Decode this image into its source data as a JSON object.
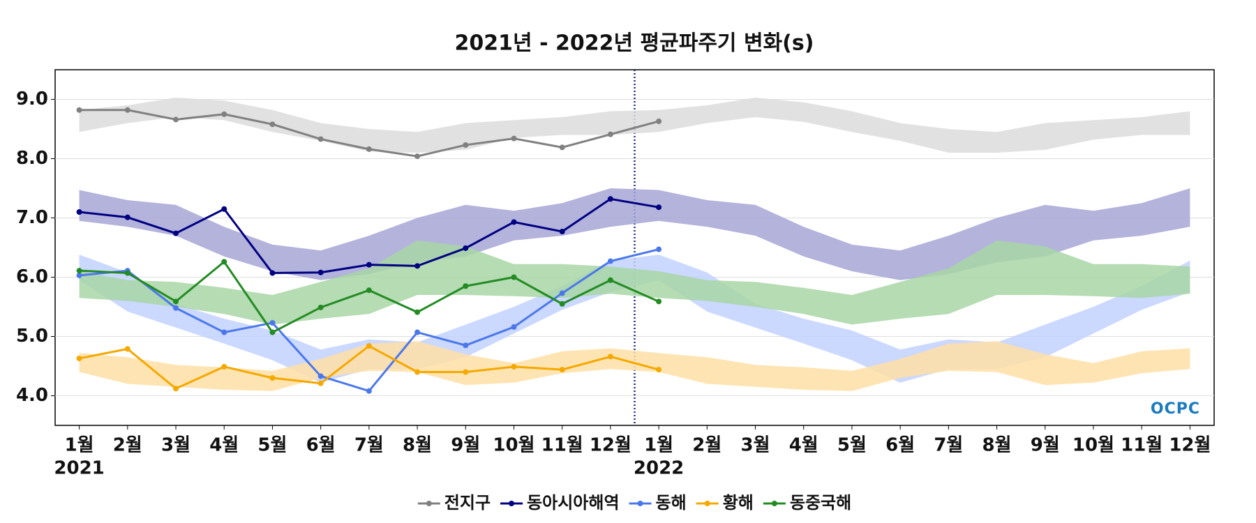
{
  "chart_data": {
    "type": "line",
    "title": "2021년 - 2022년 평균파주기 변화(s)",
    "categories": [
      "1월",
      "2월",
      "3월",
      "4월",
      "5월",
      "6월",
      "7월",
      "8월",
      "9월",
      "10월",
      "11월",
      "12월",
      "1월",
      "2월",
      "3월",
      "4월",
      "5월",
      "6월",
      "7월",
      "8월",
      "9월",
      "10월",
      "11월",
      "12월"
    ],
    "category_years": [
      "2021",
      null,
      null,
      null,
      null,
      null,
      null,
      null,
      null,
      null,
      null,
      null,
      "2022",
      null,
      null,
      null,
      null,
      null,
      null,
      null,
      null,
      null,
      null,
      null
    ],
    "ylim": [
      3.5,
      9.5
    ],
    "yticks": [
      {
        "value": 4,
        "label": "4.0"
      },
      {
        "value": 5,
        "label": "5.0"
      },
      {
        "value": 6,
        "label": "6.0"
      },
      {
        "value": 7,
        "label": "7.0"
      },
      {
        "value": 8,
        "label": "8.0"
      },
      {
        "value": 9,
        "label": "9.0"
      }
    ],
    "grid": true,
    "legend": "bottom",
    "logo": "OCPC",
    "series": [
      {
        "name": "전지구",
        "color": "#808080",
        "band_color": "#dcdcdc",
        "values": [
          8.82,
          8.82,
          8.66,
          8.75,
          8.58,
          8.33,
          8.16,
          8.04,
          8.23,
          8.34,
          8.19,
          8.41,
          8.63,
          null,
          null,
          null,
          null,
          null,
          null,
          null,
          null,
          null,
          null,
          null
        ],
        "band_low": [
          8.45,
          8.6,
          8.7,
          8.65,
          8.45,
          8.3,
          8.12,
          8.1,
          8.15,
          8.35,
          8.4,
          8.4,
          8.45,
          8.6,
          8.7,
          8.62,
          8.45,
          8.3,
          8.1,
          8.1,
          8.15,
          8.32,
          8.4,
          8.4
        ],
        "band_high": [
          8.82,
          8.9,
          9.03,
          8.98,
          8.82,
          8.6,
          8.5,
          8.45,
          8.6,
          8.65,
          8.7,
          8.8,
          8.82,
          8.9,
          9.03,
          8.95,
          8.8,
          8.6,
          8.5,
          8.45,
          8.6,
          8.65,
          8.7,
          8.8
        ]
      },
      {
        "name": "동아시아해역",
        "color": "#000080",
        "band_color": "#a6a6d6",
        "values": [
          7.1,
          7.01,
          6.74,
          7.15,
          6.07,
          6.08,
          6.21,
          6.19,
          6.49,
          6.93,
          6.77,
          7.32,
          7.18,
          null,
          null,
          null,
          null,
          null,
          null,
          null,
          null,
          null,
          null,
          null
        ],
        "band_low": [
          6.95,
          6.85,
          6.7,
          6.35,
          6.1,
          5.95,
          6.05,
          6.25,
          6.35,
          6.62,
          6.7,
          6.85,
          6.95,
          6.85,
          6.7,
          6.35,
          6.1,
          5.95,
          6.05,
          6.25,
          6.35,
          6.62,
          6.7,
          6.85
        ],
        "band_high": [
          7.47,
          7.3,
          7.22,
          6.85,
          6.55,
          6.45,
          6.7,
          7.0,
          7.22,
          7.12,
          7.25,
          7.5,
          7.47,
          7.3,
          7.22,
          6.85,
          6.55,
          6.45,
          6.7,
          7.0,
          7.22,
          7.12,
          7.25,
          7.5
        ]
      },
      {
        "name": "동해",
        "color": "#4a78ea",
        "band_color": "#c2d1ff",
        "values": [
          6.03,
          6.11,
          5.48,
          5.07,
          5.23,
          4.33,
          4.08,
          5.07,
          4.85,
          5.16,
          5.73,
          6.27,
          6.47,
          null,
          null,
          null,
          null,
          null,
          null,
          null,
          null,
          null,
          null,
          null
        ],
        "band_low": [
          5.95,
          5.42,
          5.15,
          4.88,
          4.6,
          4.22,
          4.45,
          4.45,
          4.65,
          5.05,
          5.45,
          5.75,
          5.95,
          5.42,
          5.15,
          4.88,
          4.6,
          4.22,
          4.45,
          4.45,
          4.65,
          5.05,
          5.45,
          5.75
        ],
        "band_high": [
          6.38,
          6.08,
          5.55,
          5.3,
          5.1,
          4.78,
          4.95,
          4.9,
          5.2,
          5.5,
          5.85,
          6.28,
          6.38,
          6.08,
          5.55,
          5.3,
          5.1,
          4.78,
          4.95,
          4.9,
          5.2,
          5.5,
          5.85,
          6.28
        ]
      },
      {
        "name": "황해",
        "color": "#f5a800",
        "band_color": "#ffdfa6",
        "values": [
          4.63,
          4.79,
          4.12,
          4.49,
          4.3,
          4.21,
          4.84,
          4.4,
          4.4,
          4.49,
          4.44,
          4.66,
          4.44,
          null,
          null,
          null,
          null,
          null,
          null,
          null,
          null,
          null,
          null,
          null
        ],
        "band_low": [
          4.4,
          4.2,
          4.15,
          4.1,
          4.08,
          4.3,
          4.42,
          4.4,
          4.18,
          4.22,
          4.38,
          4.45,
          4.4,
          4.2,
          4.15,
          4.1,
          4.08,
          4.3,
          4.42,
          4.4,
          4.18,
          4.22,
          4.38,
          4.45
        ],
        "band_high": [
          4.72,
          4.65,
          4.52,
          4.48,
          4.42,
          4.62,
          4.88,
          4.92,
          4.7,
          4.55,
          4.75,
          4.8,
          4.72,
          4.65,
          4.52,
          4.48,
          4.42,
          4.62,
          4.88,
          4.92,
          4.7,
          4.55,
          4.75,
          4.8
        ]
      },
      {
        "name": "동중국해",
        "color": "#238b23",
        "band_color": "#a8d6a4",
        "values": [
          6.11,
          6.07,
          5.59,
          6.26,
          5.07,
          5.49,
          5.78,
          5.41,
          5.85,
          6.0,
          5.55,
          5.95,
          5.59,
          null,
          null,
          null,
          null,
          null,
          null,
          null,
          null,
          null,
          null,
          null
        ],
        "band_low": [
          5.65,
          5.6,
          5.5,
          5.38,
          5.2,
          5.3,
          5.38,
          5.7,
          5.7,
          5.68,
          5.65,
          5.72,
          5.65,
          5.6,
          5.5,
          5.38,
          5.2,
          5.3,
          5.38,
          5.7,
          5.7,
          5.68,
          5.65,
          5.72
        ],
        "band_high": [
          6.1,
          5.95,
          5.92,
          5.82,
          5.7,
          5.92,
          6.15,
          6.62,
          6.52,
          6.22,
          6.22,
          6.18,
          6.1,
          5.95,
          5.92,
          5.82,
          5.7,
          5.92,
          6.15,
          6.62,
          6.52,
          6.22,
          6.22,
          6.18
        ]
      }
    ]
  }
}
